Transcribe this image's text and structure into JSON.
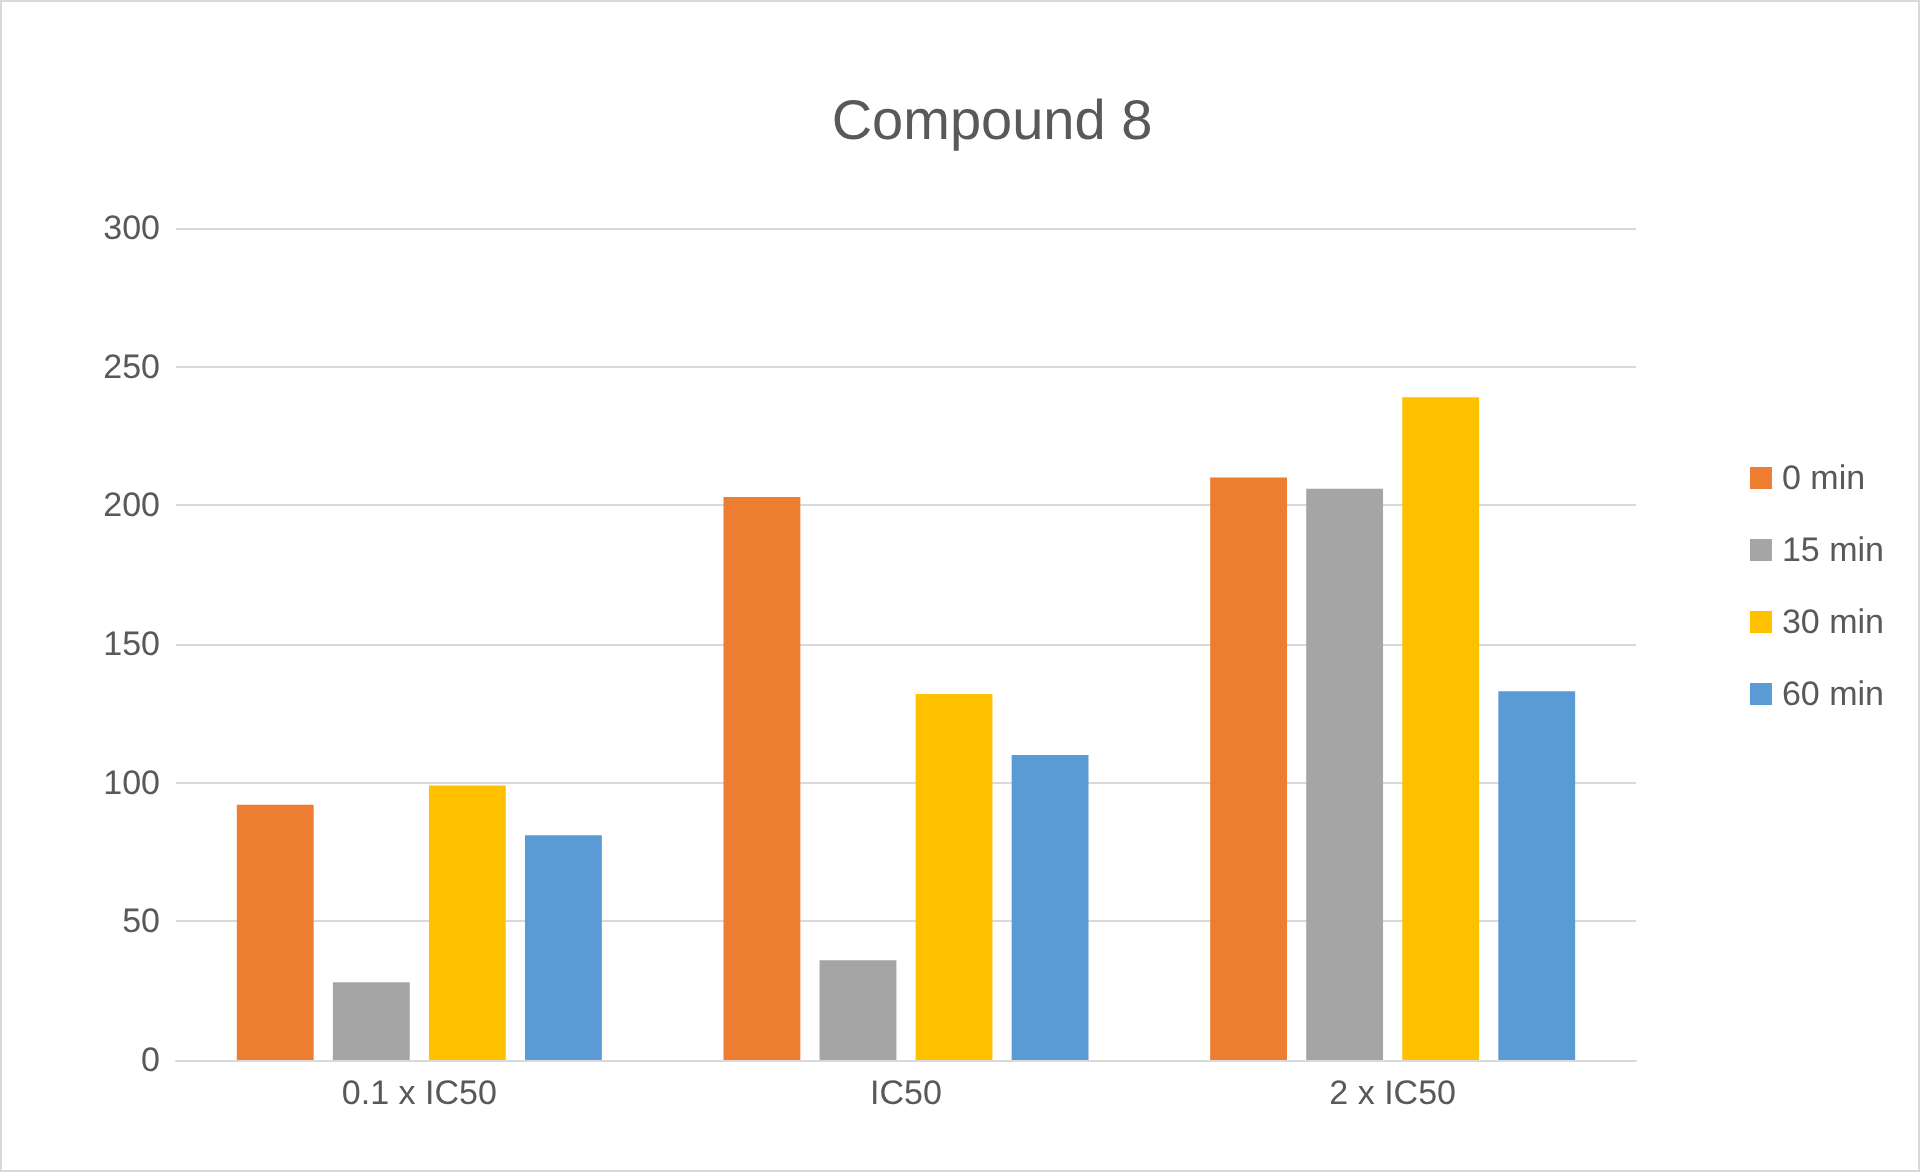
{
  "chart_data": {
    "type": "bar",
    "title": "Compound 8",
    "categories": [
      "0.1 x IC50",
      "IC50",
      "2 x IC50"
    ],
    "series": [
      {
        "name": "0 min",
        "color": "#ed7d31",
        "values": [
          92,
          203,
          210
        ]
      },
      {
        "name": "15 min",
        "color": "#a5a5a5",
        "values": [
          28,
          36,
          206
        ]
      },
      {
        "name": "30 min",
        "color": "#ffc000",
        "values": [
          99,
          132,
          239
        ]
      },
      {
        "name": "60 min",
        "color": "#5b9bd5",
        "values": [
          81,
          110,
          133
        ]
      }
    ],
    "ylim": [
      0,
      300
    ],
    "yticks": [
      0,
      50,
      100,
      150,
      200,
      250,
      300
    ],
    "grid": "y",
    "legend": "right"
  }
}
